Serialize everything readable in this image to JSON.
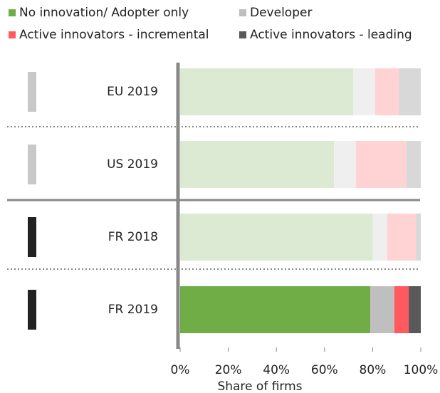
{
  "chart_data": {
    "type": "stacked_barh",
    "categories": [
      "EU 2019",
      "US 2019",
      "FR 2018",
      "FR 2019"
    ],
    "highlight": "FR 2019",
    "marker_colors": [
      "#c8c8c8",
      "#c8c8c8",
      "#222222",
      "#222222"
    ],
    "series": [
      {
        "name": "No innovation/ Adopter only",
        "color": "#70ad47",
        "faded_color": "#dce9d3",
        "values": [
          72,
          64,
          80,
          79
        ]
      },
      {
        "name": "Developer",
        "color": "#bfbfbf",
        "faded_color": "#efefef",
        "values": [
          9,
          9,
          6,
          10
        ]
      },
      {
        "name": "Active innovators - incremental",
        "color": "#ff5a5f",
        "faded_color": "#ffd3d3",
        "values": [
          10,
          21,
          12,
          6
        ]
      },
      {
        "name": "Active innovators - leading",
        "color": "#595959",
        "faded_color": "#d8d8d8",
        "values": [
          9,
          6,
          2,
          5
        ]
      }
    ],
    "xlim": [
      0,
      100
    ],
    "xticks": [
      {
        "value": 0,
        "label": "0%"
      },
      {
        "value": 20,
        "label": "20%"
      },
      {
        "value": 40,
        "label": "40%"
      },
      {
        "value": 60,
        "label": "60%"
      },
      {
        "value": 80,
        "label": "80%"
      },
      {
        "value": 100,
        "label": "100%"
      }
    ],
    "xlabel": "Share of firms"
  }
}
